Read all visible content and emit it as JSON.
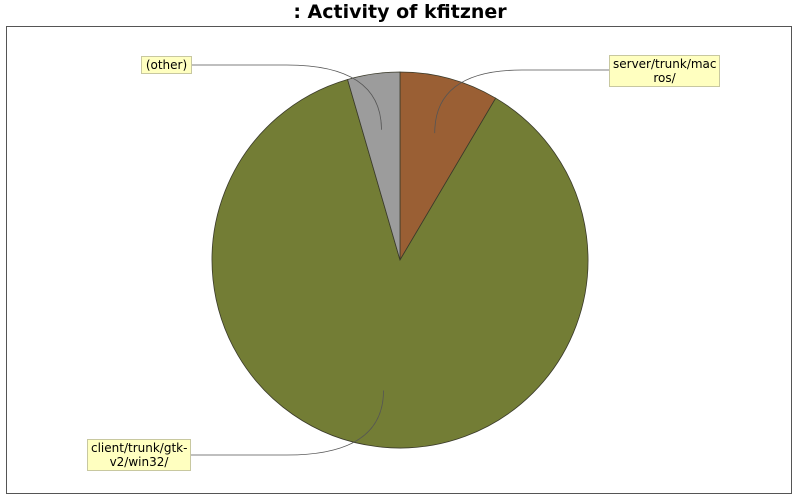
{
  "chart_data": {
    "type": "pie",
    "title": ": Activity of kfitzner",
    "slices": [
      {
        "label": "server/trunk/macros/",
        "value": 8.5,
        "color": "#9a5f34"
      },
      {
        "label": "client/trunk/gtk-v2/win32/",
        "value": 87.0,
        "color": "#737d35"
      },
      {
        "label": "(other)",
        "value": 4.5,
        "color": "#9c9c9c"
      }
    ],
    "callout_text": [
      [
        "server/trunk/mac",
        "ros/"
      ],
      [
        "client/trunk/gtk-",
        "v2/win32/"
      ],
      [
        "(other)"
      ]
    ]
  }
}
